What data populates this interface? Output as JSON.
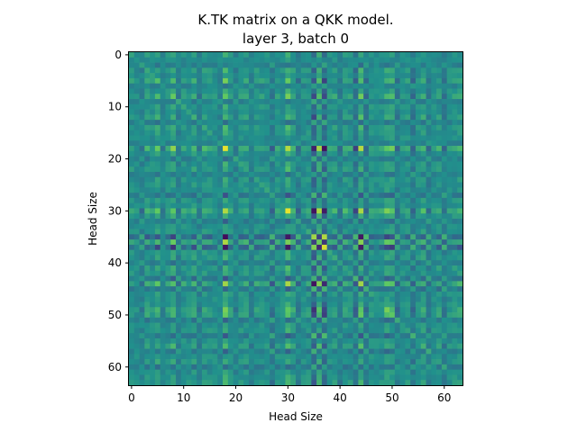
{
  "chart_data": {
    "type": "heatmap",
    "title": "K.TK matrix on a QKK model.",
    "subtitle": "layer 3, batch 0",
    "xlabel": "Head Size",
    "ylabel": "Head Size",
    "size": 64,
    "x_ticks": [
      0,
      10,
      20,
      30,
      40,
      50,
      60
    ],
    "y_ticks": [
      0,
      10,
      20,
      30,
      40,
      50,
      60
    ],
    "xlim": [
      -0.5,
      63.5
    ],
    "ylim": [
      63.5,
      -0.5
    ],
    "colormap": "viridis",
    "grid": false,
    "legend": "none",
    "colors": [
      "#440154",
      "#3b528b",
      "#21918c",
      "#5ec962",
      "#fde725"
    ],
    "row_weights": [
      0.3,
      0.1,
      0.2,
      0.4,
      0.2,
      0.6,
      0.1,
      0.3,
      0.7,
      0.2,
      0.3,
      0.2,
      0.5,
      0.2,
      0.4,
      0.3,
      0.2,
      0.1,
      1.0,
      0.3,
      0.2,
      0.3,
      0.4,
      0.2,
      0.3,
      0.3,
      0.2,
      0.4,
      0.3,
      0.2,
      1.0,
      0.4,
      0.3,
      0.2,
      0.3,
      0.9,
      0.8,
      0.9,
      0.3,
      0.4,
      0.3,
      0.4,
      0.3,
      0.5,
      0.9,
      0.4,
      0.3,
      0.2,
      0.3,
      0.7,
      0.6,
      0.3,
      0.2,
      0.3,
      0.4,
      0.2,
      0.5,
      0.3,
      0.2,
      0.4,
      0.3,
      0.2,
      0.3,
      0.4
    ],
    "row_signs": [
      1,
      1,
      -1,
      1,
      1,
      1,
      -1,
      1,
      1,
      -1,
      1,
      1,
      1,
      -1,
      1,
      1,
      1,
      -1,
      1,
      1,
      -1,
      1,
      1,
      -1,
      1,
      1,
      1,
      -1,
      1,
      1,
      1,
      1,
      -1,
      1,
      1,
      -1,
      1,
      -1,
      1,
      1,
      -1,
      1,
      1,
      -1,
      1,
      -1,
      1,
      1,
      1,
      1,
      1,
      -1,
      1,
      1,
      -1,
      1,
      1,
      -1,
      1,
      1,
      -1,
      1,
      1,
      1
    ]
  }
}
